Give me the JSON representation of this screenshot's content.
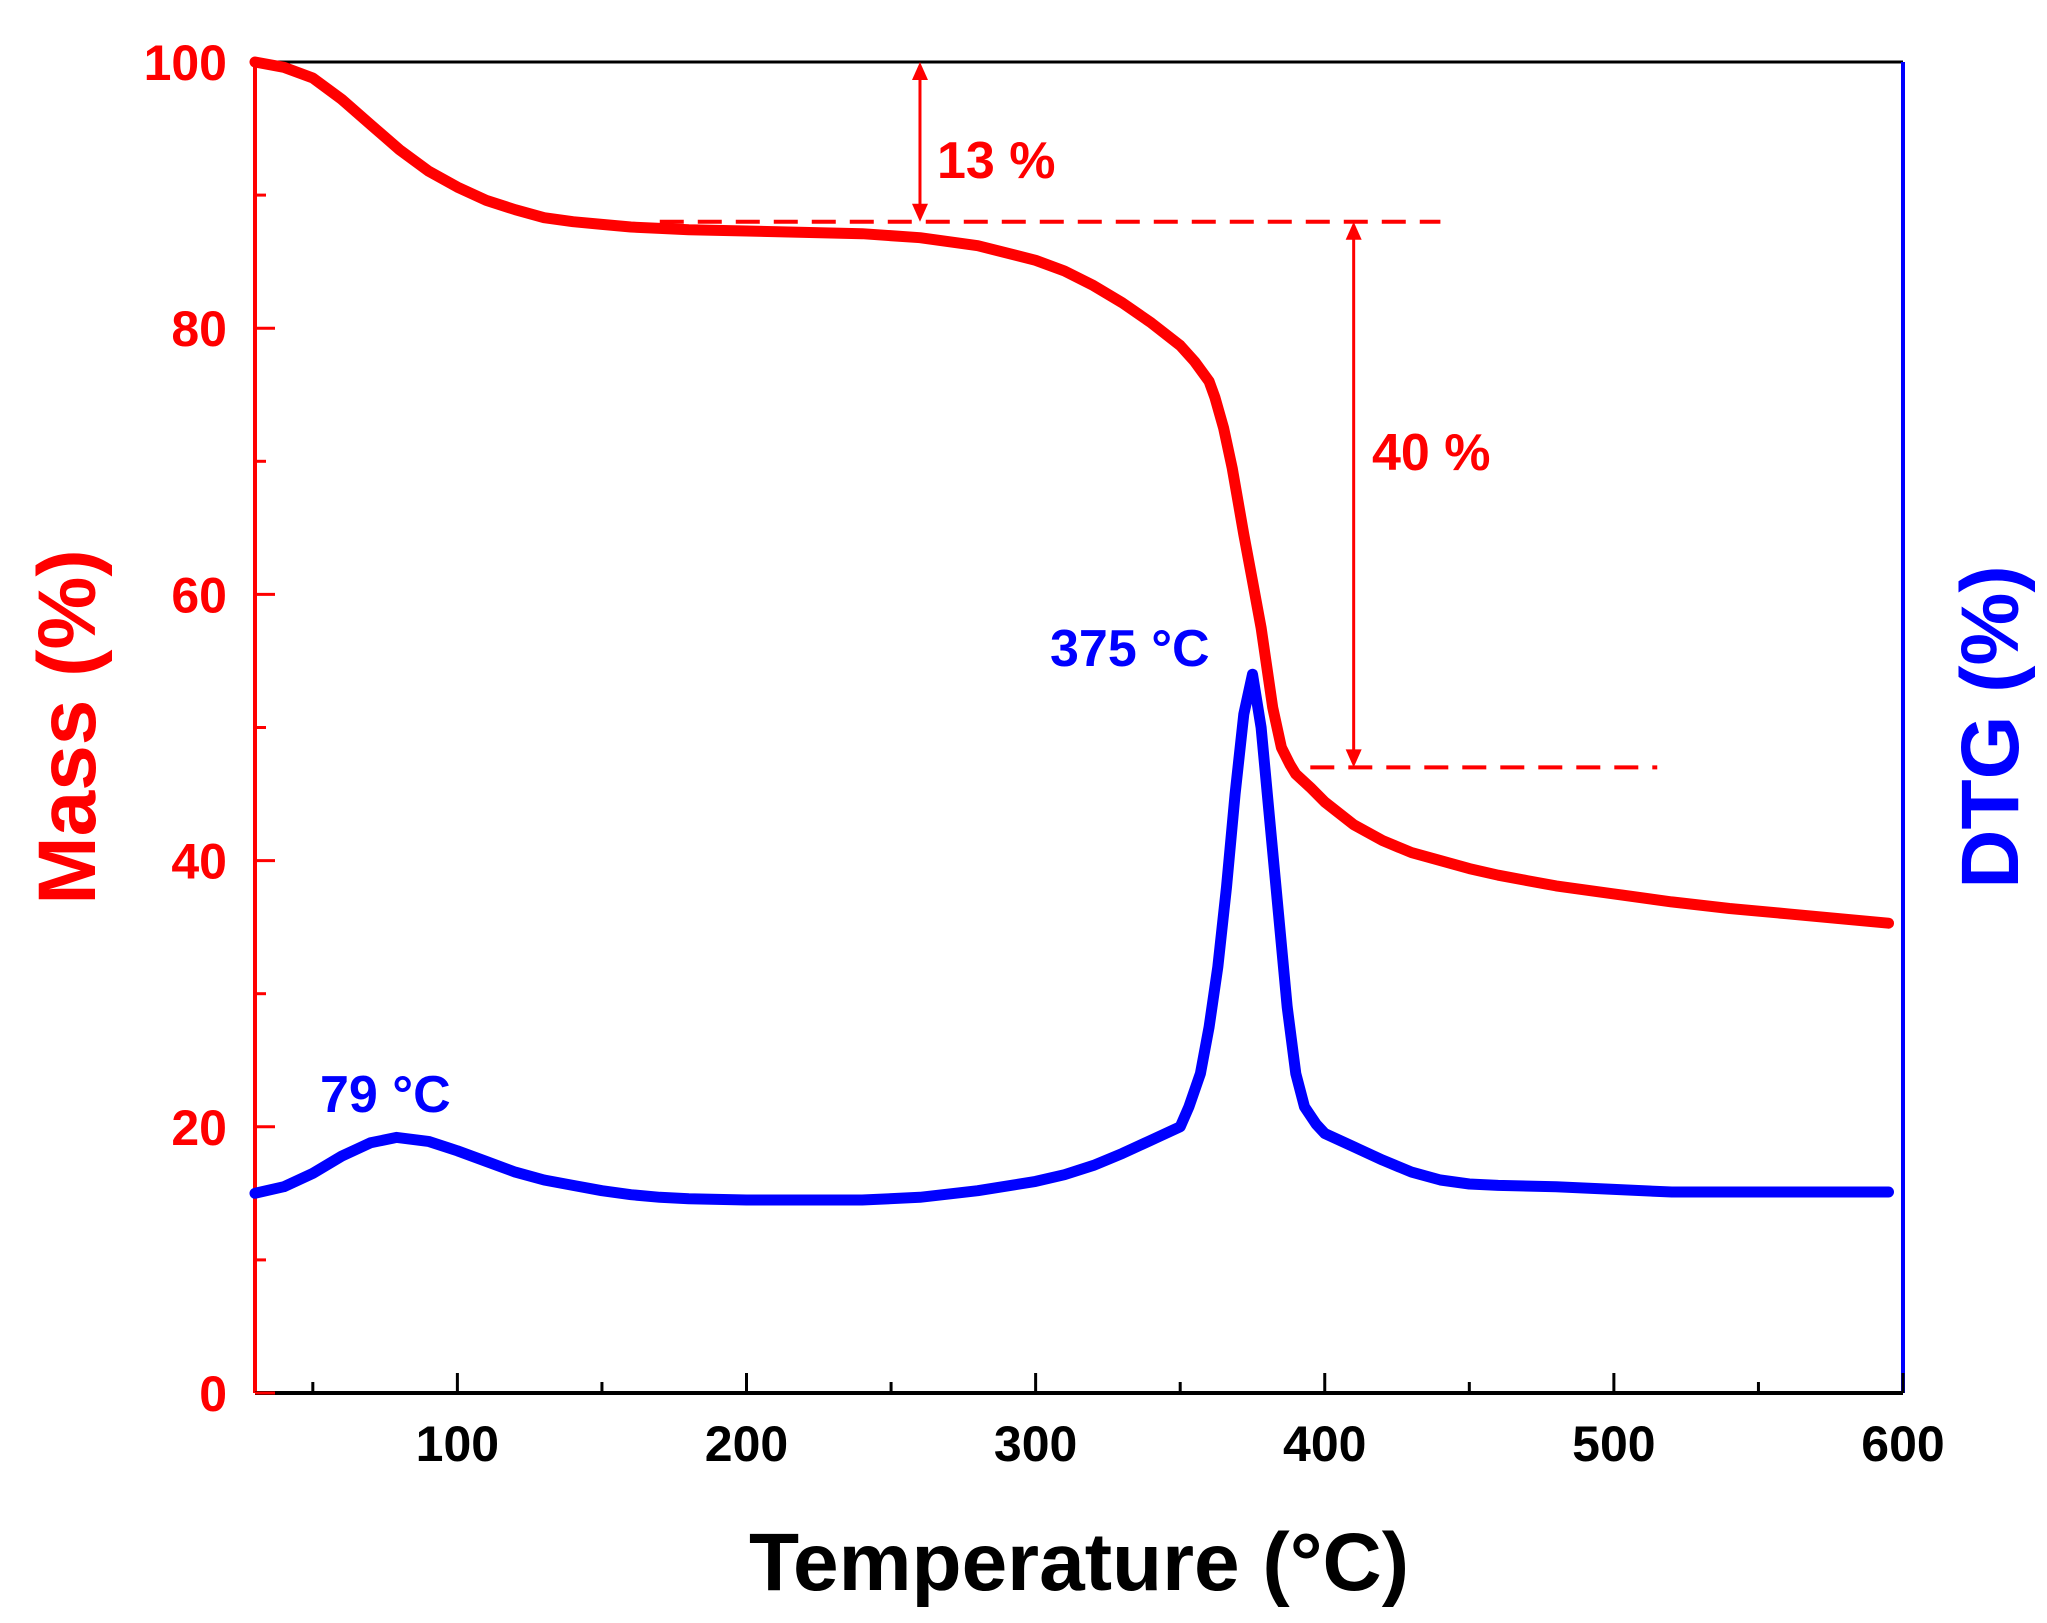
{
  "chart_data": {
    "type": "line",
    "xlabel": "Temperature (°C)",
    "ylabel_left": "Mass (%)",
    "ylabel_right": "DTG (%)",
    "xlim": [
      30,
      600
    ],
    "ylim": [
      0,
      100
    ],
    "x_ticks": [
      100,
      200,
      300,
      400,
      500,
      600
    ],
    "y_ticks": [
      0,
      20,
      40,
      60,
      80,
      100
    ],
    "colors": {
      "mass": "#ff0000",
      "dtg": "#0000ff",
      "axis": "#000000"
    },
    "series": [
      {
        "name": "Mass",
        "axis": "left",
        "color": "#ff0000",
        "x": [
          30,
          40,
          50,
          60,
          70,
          80,
          90,
          100,
          110,
          120,
          130,
          140,
          150,
          160,
          170,
          180,
          200,
          220,
          240,
          260,
          280,
          300,
          310,
          320,
          330,
          340,
          350,
          355,
          360,
          362,
          365,
          368,
          370,
          372,
          375,
          378,
          380,
          382,
          385,
          388,
          390,
          395,
          400,
          410,
          420,
          430,
          440,
          450,
          460,
          470,
          480,
          490,
          500,
          520,
          540,
          560,
          580,
          595
        ],
        "values": [
          100,
          99.6,
          98.8,
          97.2,
          95.3,
          93.4,
          91.8,
          90.6,
          89.6,
          88.9,
          88.3,
          88,
          87.8,
          87.6,
          87.5,
          87.4,
          87.3,
          87.2,
          87.1,
          86.8,
          86.2,
          85.1,
          84.3,
          83.2,
          81.9,
          80.4,
          78.7,
          77.5,
          76,
          74.8,
          72.5,
          69.5,
          67,
          64.5,
          61,
          57.5,
          54.5,
          51.5,
          48.5,
          47.2,
          46.5,
          45.5,
          44.4,
          42.7,
          41.5,
          40.6,
          40,
          39.4,
          38.9,
          38.5,
          38.1,
          37.8,
          37.5,
          36.9,
          36.4,
          36,
          35.6,
          35.3
        ]
      },
      {
        "name": "DTG",
        "axis": "right",
        "color": "#0000ff",
        "x": [
          30,
          40,
          50,
          60,
          70,
          79,
          90,
          100,
          110,
          120,
          130,
          140,
          150,
          160,
          170,
          180,
          200,
          220,
          240,
          260,
          280,
          300,
          310,
          320,
          330,
          340,
          350,
          353,
          357,
          360,
          363,
          366,
          369,
          372,
          375,
          378,
          381,
          384,
          387,
          390,
          393,
          397,
          400,
          410,
          420,
          430,
          440,
          450,
          460,
          480,
          500,
          520,
          540,
          560,
          580,
          595
        ],
        "values": [
          15,
          15.5,
          16.5,
          17.8,
          18.8,
          19.2,
          18.9,
          18.2,
          17.4,
          16.6,
          16,
          15.6,
          15.2,
          14.9,
          14.7,
          14.6,
          14.5,
          14.5,
          14.5,
          14.7,
          15.2,
          15.9,
          16.4,
          17.1,
          18,
          19,
          20,
          21.5,
          24,
          27.5,
          32,
          38,
          45,
          51,
          54,
          50,
          43,
          36,
          29,
          24,
          21.5,
          20.2,
          19.5,
          18.5,
          17.5,
          16.6,
          16,
          15.7,
          15.6,
          15.5,
          15.3,
          15.1,
          15.1,
          15.1,
          15.1,
          15.1
        ]
      }
    ],
    "annotations": [
      {
        "text": "13 %",
        "color": "#ff0000",
        "kind": "mass-loss",
        "x": 260,
        "from": 100,
        "to": 88
      },
      {
        "text": "40 %",
        "color": "#ff0000",
        "kind": "mass-loss",
        "x": 410,
        "from": 88,
        "to": 47
      },
      {
        "text": "79 °C",
        "color": "#0000ff",
        "kind": "peak",
        "x": 79,
        "y": 19.2
      },
      {
        "text": "375 °C",
        "color": "#0000ff",
        "kind": "peak",
        "x": 375,
        "y": 54
      }
    ],
    "reference_lines": [
      {
        "y": 88,
        "x_from": 170,
        "x_to": 440,
        "style": "dashed",
        "color": "#ff0000"
      },
      {
        "y": 47,
        "x_from": 395,
        "x_to": 515,
        "style": "dashed",
        "color": "#ff0000"
      }
    ]
  }
}
